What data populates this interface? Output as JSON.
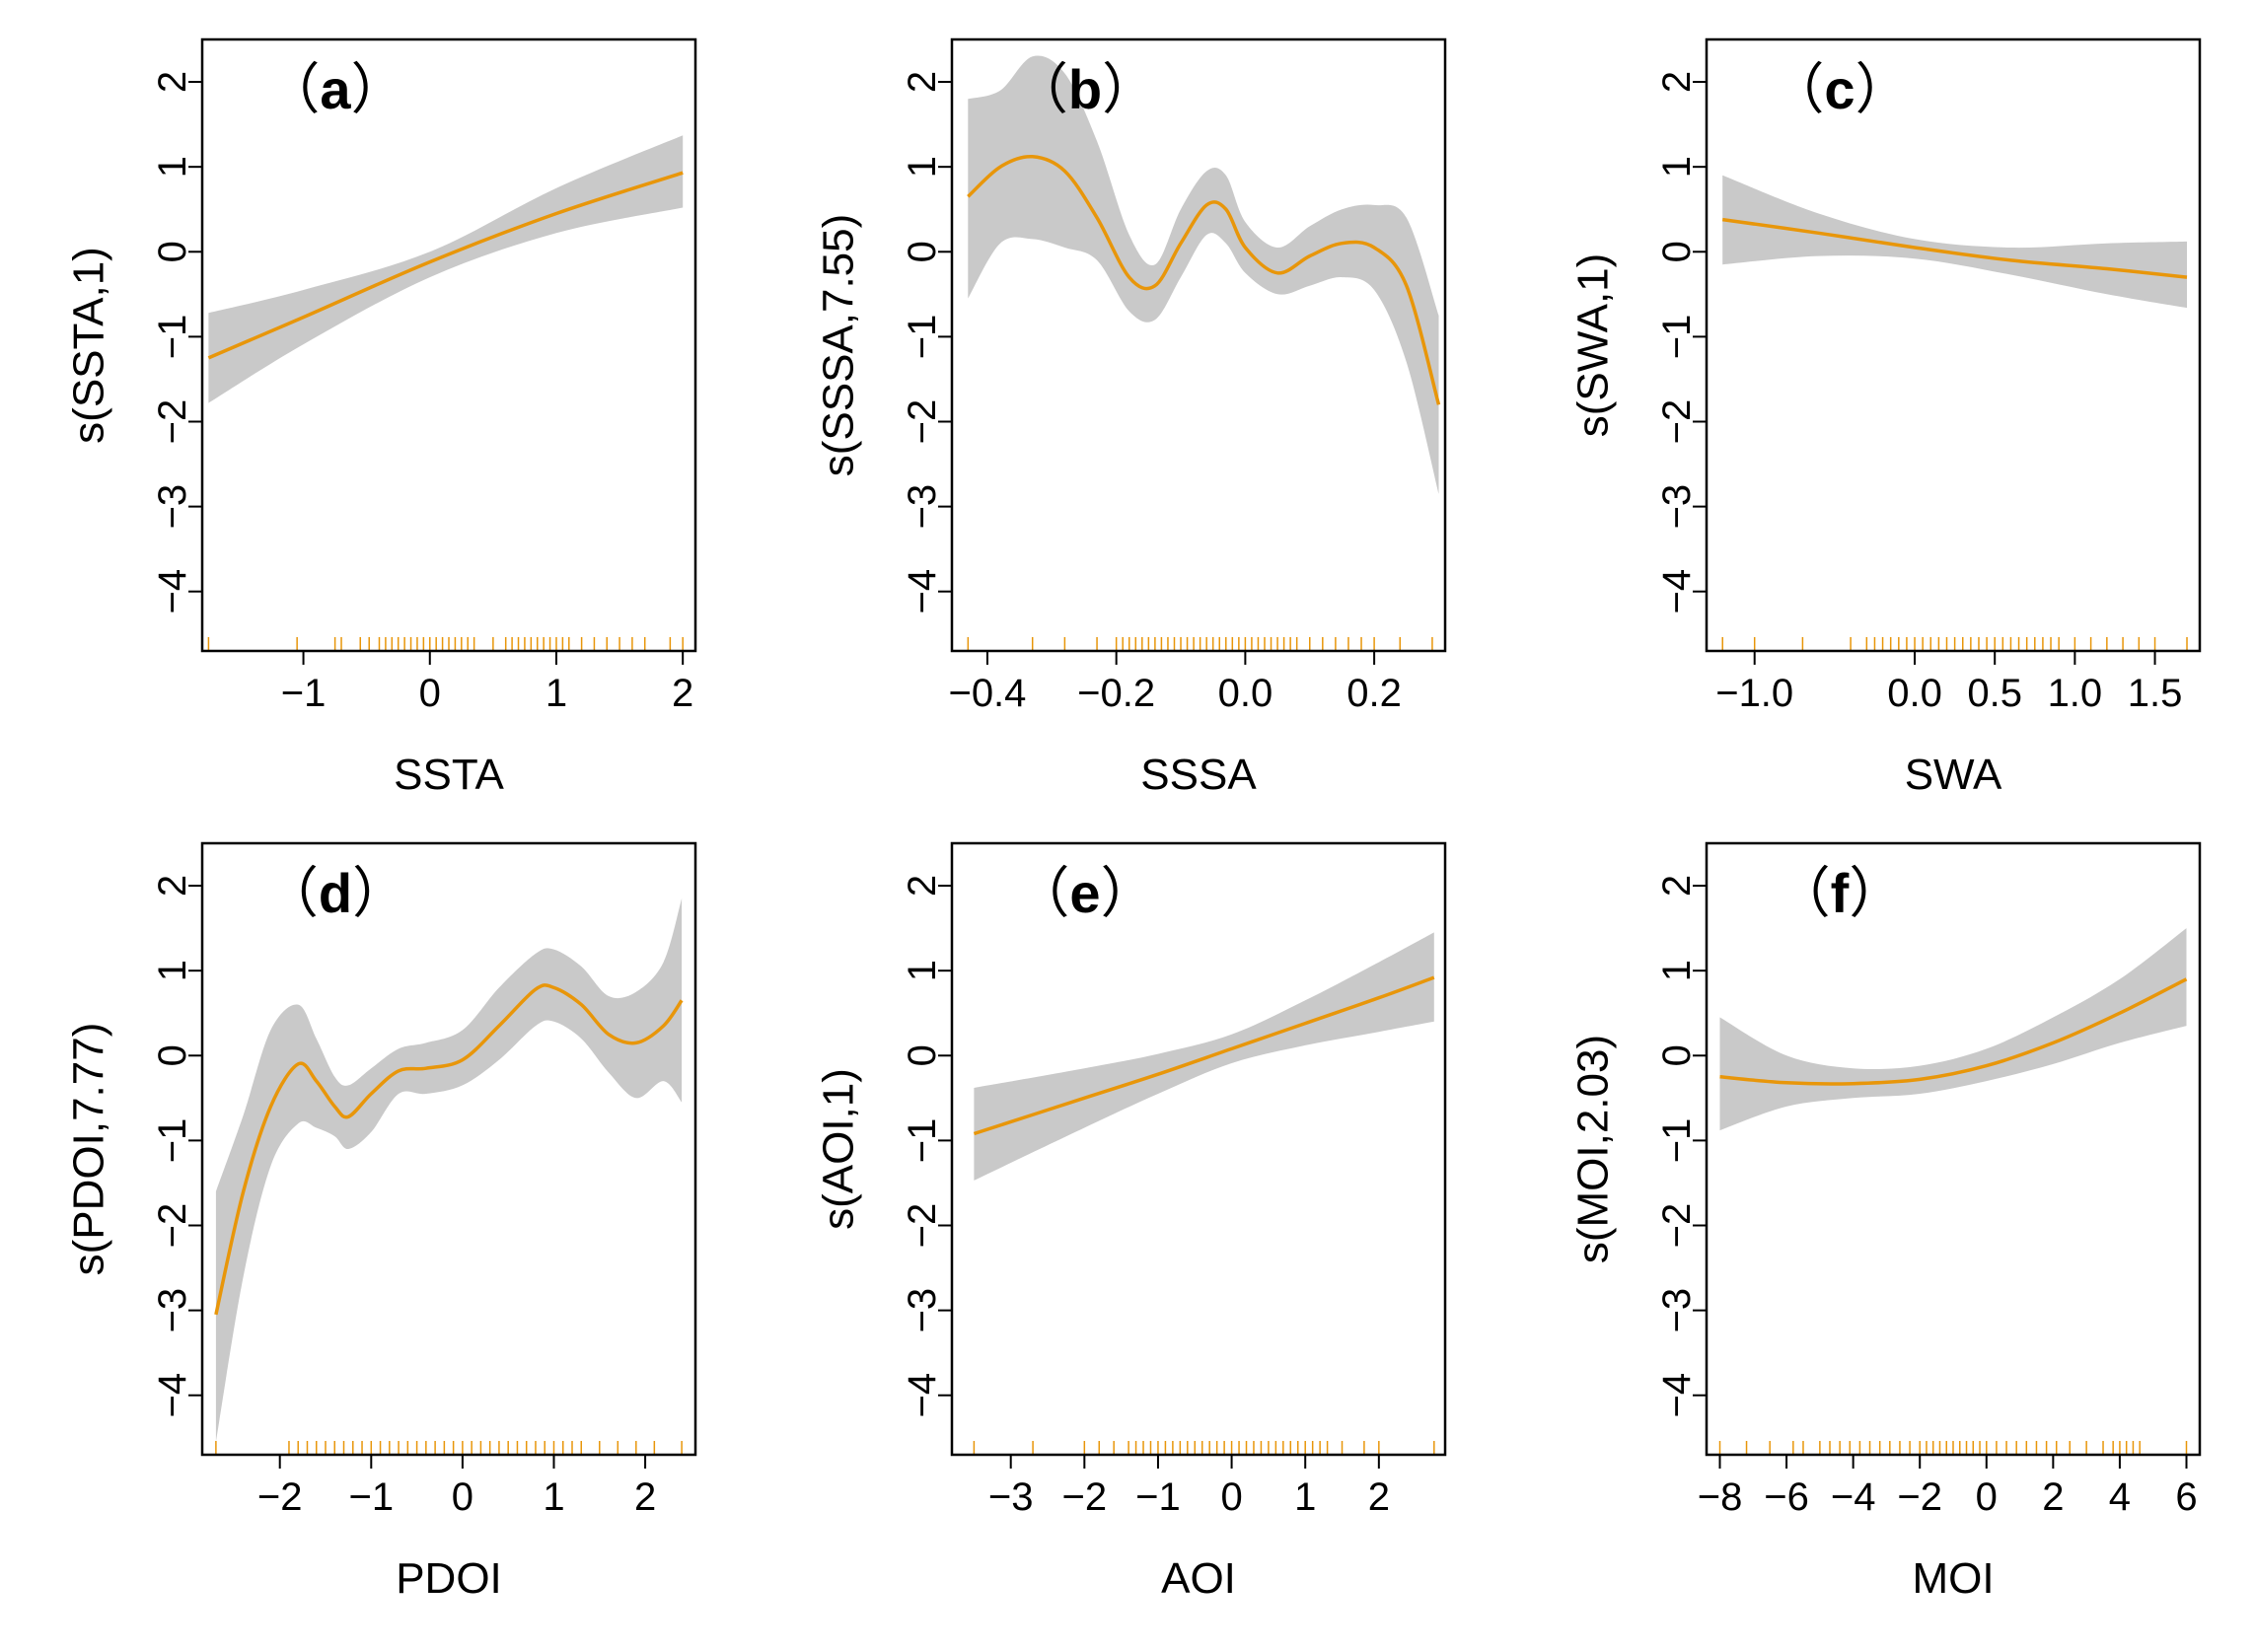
{
  "colors": {
    "line": "#E8960A",
    "band": "#C9C9C9",
    "rug": "#E8960A",
    "axis": "#000000"
  },
  "chart_data": [
    {
      "type": "line",
      "panel": "a",
      "tag": "a",
      "xlabel": "SSTA",
      "ylabel": "s(SSTA,1)",
      "xlim": [
        -1.8,
        2.1
      ],
      "ylim": [
        -4.7,
        2.5
      ],
      "xticks": [
        -1,
        0,
        1,
        2
      ],
      "xtick_labels": [
        "−1",
        "0",
        "1",
        "2"
      ],
      "yticks": [
        -4,
        -3,
        -2,
        -1,
        0,
        1,
        2
      ],
      "ytick_labels": [
        "−4",
        "−3",
        "−2",
        "−1",
        "0",
        "1",
        "2"
      ],
      "x": [
        -1.75,
        -1.0,
        0.0,
        1.0,
        2.0
      ],
      "y": [
        -1.25,
        -0.77,
        -0.12,
        0.45,
        0.93
      ],
      "upper": [
        -0.72,
        -0.45,
        0.0,
        0.75,
        1.37
      ],
      "lower": [
        -1.78,
        -1.09,
        -0.3,
        0.22,
        0.52
      ],
      "rug": [
        -1.75,
        -1.05,
        -0.75,
        -0.7,
        -0.55,
        -0.48,
        -0.4,
        -0.35,
        -0.3,
        -0.25,
        -0.2,
        -0.15,
        -0.1,
        -0.05,
        0.0,
        0.05,
        0.1,
        0.15,
        0.2,
        0.25,
        0.3,
        0.35,
        0.5,
        0.6,
        0.65,
        0.7,
        0.75,
        0.8,
        0.85,
        0.9,
        0.95,
        1.0,
        1.05,
        1.1,
        1.2,
        1.3,
        1.4,
        1.5,
        1.6,
        1.7,
        1.9,
        2.0
      ]
    },
    {
      "type": "line",
      "panel": "b",
      "tag": "b",
      "xlabel": "SSSA",
      "ylabel": "s(SSSA,7.55)",
      "xlim": [
        -0.455,
        0.31
      ],
      "ylim": [
        -4.7,
        2.5
      ],
      "xticks": [
        -0.4,
        -0.2,
        0.0,
        0.2
      ],
      "xtick_labels": [
        "−0.4",
        "−0.2",
        "0.0",
        "0.2"
      ],
      "yticks": [
        -4,
        -3,
        -2,
        -1,
        0,
        1,
        2
      ],
      "ytick_labels": [
        "−4",
        "−3",
        "−2",
        "−1",
        "0",
        "1",
        "2"
      ],
      "x": [
        -0.43,
        -0.38,
        -0.33,
        -0.28,
        -0.23,
        -0.18,
        -0.14,
        -0.1,
        -0.06,
        -0.03,
        0.0,
        0.05,
        0.1,
        0.15,
        0.2,
        0.25,
        0.3
      ],
      "y": [
        0.65,
        1.0,
        1.12,
        0.95,
        0.4,
        -0.3,
        -0.4,
        0.1,
        0.55,
        0.5,
        0.05,
        -0.25,
        -0.05,
        0.1,
        0.05,
        -0.4,
        -1.8
      ],
      "upper": [
        1.8,
        1.9,
        2.3,
        2.1,
        1.3,
        0.2,
        -0.15,
        0.5,
        0.95,
        0.9,
        0.35,
        0.05,
        0.3,
        0.5,
        0.55,
        0.4,
        -0.75
      ],
      "lower": [
        -0.55,
        0.1,
        0.15,
        0.05,
        -0.1,
        -0.7,
        -0.8,
        -0.3,
        0.2,
        0.1,
        -0.25,
        -0.5,
        -0.4,
        -0.3,
        -0.45,
        -1.3,
        -2.85
      ],
      "rug": [
        -0.43,
        -0.33,
        -0.28,
        -0.23,
        -0.2,
        -0.19,
        -0.18,
        -0.17,
        -0.16,
        -0.15,
        -0.14,
        -0.13,
        -0.12,
        -0.11,
        -0.1,
        -0.09,
        -0.08,
        -0.07,
        -0.06,
        -0.05,
        -0.04,
        -0.03,
        -0.02,
        -0.01,
        0.0,
        0.01,
        0.02,
        0.03,
        0.04,
        0.05,
        0.06,
        0.07,
        0.08,
        0.1,
        0.12,
        0.14,
        0.16,
        0.18,
        0.2,
        0.24,
        0.29
      ]
    },
    {
      "type": "line",
      "panel": "c",
      "tag": "c",
      "xlabel": "SWA",
      "ylabel": "s(SWA,1)",
      "xlim": [
        -1.3,
        1.78
      ],
      "ylim": [
        -4.7,
        2.5
      ],
      "xticks": [
        -1.0,
        0.0,
        0.5,
        1.0,
        1.5
      ],
      "xtick_labels": [
        "−1.0",
        "0.0",
        "0.5",
        "1.0",
        "1.5"
      ],
      "yticks": [
        -4,
        -3,
        -2,
        -1,
        0,
        1,
        2
      ],
      "ytick_labels": [
        "−4",
        "−3",
        "−2",
        "−1",
        "0",
        "1",
        "2"
      ],
      "x": [
        -1.2,
        -0.6,
        0.0,
        0.6,
        1.2,
        1.7
      ],
      "y": [
        0.38,
        0.22,
        0.05,
        -0.1,
        -0.2,
        -0.3
      ],
      "upper": [
        0.9,
        0.45,
        0.15,
        0.05,
        0.1,
        0.12
      ],
      "lower": [
        -0.15,
        -0.05,
        -0.08,
        -0.27,
        -0.5,
        -0.66
      ],
      "rug": [
        -1.2,
        -1.0,
        -0.7,
        -0.4,
        -0.3,
        -0.25,
        -0.2,
        -0.15,
        -0.1,
        -0.05,
        0.0,
        0.05,
        0.1,
        0.15,
        0.2,
        0.25,
        0.3,
        0.35,
        0.4,
        0.45,
        0.5,
        0.55,
        0.6,
        0.65,
        0.7,
        0.75,
        0.8,
        0.85,
        0.9,
        1.0,
        1.1,
        1.2,
        1.3,
        1.4,
        1.5,
        1.7
      ]
    },
    {
      "type": "line",
      "panel": "d",
      "tag": "d",
      "xlabel": "PDOI",
      "ylabel": "s(PDOI,7.77)",
      "xlim": [
        -2.85,
        2.55
      ],
      "ylim": [
        -4.7,
        2.5
      ],
      "xticks": [
        -2,
        -1,
        0,
        1,
        2
      ],
      "xtick_labels": [
        "−2",
        "−1",
        "0",
        "1",
        "2"
      ],
      "yticks": [
        -4,
        -3,
        -2,
        -1,
        0,
        1,
        2
      ],
      "ytick_labels": [
        "−4",
        "−3",
        "−2",
        "−1",
        "0",
        "1",
        "2"
      ],
      "x": [
        -2.7,
        -2.4,
        -2.1,
        -1.8,
        -1.6,
        -1.4,
        -1.25,
        -1.0,
        -0.7,
        -0.4,
        0.0,
        0.4,
        0.8,
        1.0,
        1.3,
        1.6,
        1.9,
        2.2,
        2.4
      ],
      "y": [
        -3.05,
        -1.6,
        -0.6,
        -0.1,
        -0.3,
        -0.6,
        -0.72,
        -0.45,
        -0.18,
        -0.15,
        -0.05,
        0.35,
        0.78,
        0.8,
        0.6,
        0.25,
        0.15,
        0.35,
        0.65
      ],
      "upper": [
        -1.6,
        -0.7,
        0.3,
        0.6,
        0.2,
        -0.25,
        -0.35,
        -0.15,
        0.08,
        0.15,
        0.3,
        0.8,
        1.2,
        1.25,
        1.05,
        0.7,
        0.75,
        1.1,
        1.85
      ],
      "lower": [
        -4.55,
        -2.6,
        -1.3,
        -0.8,
        -0.85,
        -0.95,
        -1.1,
        -0.9,
        -0.45,
        -0.45,
        -0.35,
        -0.05,
        0.35,
        0.4,
        0.2,
        -0.2,
        -0.5,
        -0.3,
        -0.55
      ],
      "rug": [
        -2.7,
        -1.9,
        -1.8,
        -1.7,
        -1.6,
        -1.5,
        -1.4,
        -1.3,
        -1.2,
        -1.1,
        -1.0,
        -0.9,
        -0.8,
        -0.7,
        -0.6,
        -0.5,
        -0.4,
        -0.3,
        -0.2,
        -0.1,
        0.0,
        0.1,
        0.2,
        0.3,
        0.4,
        0.5,
        0.6,
        0.7,
        0.8,
        0.9,
        1.0,
        1.1,
        1.2,
        1.3,
        1.5,
        1.7,
        1.9,
        2.1,
        2.4
      ]
    },
    {
      "type": "line",
      "panel": "e",
      "tag": "e",
      "xlabel": "AOI",
      "ylabel": "s(AOI,1)",
      "xlim": [
        -3.8,
        2.9
      ],
      "ylim": [
        -4.7,
        2.5
      ],
      "xticks": [
        -3,
        -2,
        -1,
        0,
        1,
        2
      ],
      "xtick_labels": [
        "−3",
        "−2",
        "−1",
        "0",
        "1",
        "2"
      ],
      "yticks": [
        -4,
        -3,
        -2,
        -1,
        0,
        1,
        2
      ],
      "ytick_labels": [
        "−4",
        "−3",
        "−2",
        "−1",
        "0",
        "1",
        "2"
      ],
      "x": [
        -3.5,
        -2.0,
        -1.0,
        0.0,
        1.0,
        2.0,
        2.75
      ],
      "y": [
        -0.92,
        -0.5,
        -0.22,
        0.08,
        0.38,
        0.68,
        0.92
      ],
      "upper": [
        -0.38,
        -0.15,
        0.02,
        0.25,
        0.65,
        1.1,
        1.45
      ],
      "lower": [
        -1.47,
        -0.85,
        -0.45,
        -0.09,
        0.12,
        0.28,
        0.4
      ],
      "rug": [
        -3.5,
        -2.7,
        -2.0,
        -1.8,
        -1.6,
        -1.4,
        -1.3,
        -1.2,
        -1.1,
        -1.0,
        -0.9,
        -0.8,
        -0.7,
        -0.6,
        -0.5,
        -0.4,
        -0.3,
        -0.2,
        -0.1,
        0.0,
        0.1,
        0.2,
        0.3,
        0.4,
        0.5,
        0.6,
        0.7,
        0.8,
        0.9,
        1.0,
        1.1,
        1.2,
        1.3,
        1.5,
        1.8,
        2.0,
        2.75
      ]
    },
    {
      "type": "line",
      "panel": "f",
      "tag": "f",
      "xlabel": "MOI",
      "ylabel": "s(MOI,2.03)",
      "xlim": [
        -8.4,
        6.4
      ],
      "ylim": [
        -4.7,
        2.5
      ],
      "xticks": [
        -8,
        -6,
        -4,
        -2,
        0,
        2,
        4,
        6
      ],
      "xtick_labels": [
        "−8",
        "−6",
        "−4",
        "−2",
        "0",
        "2",
        "4",
        "6"
      ],
      "yticks": [
        -4,
        -3,
        -2,
        -1,
        0,
        1,
        2
      ],
      "ytick_labels": [
        "−4",
        "−3",
        "−2",
        "−1",
        "0",
        "1",
        "2"
      ],
      "x": [
        -8.0,
        -6.0,
        -4.0,
        -2.0,
        0.0,
        2.0,
        4.0,
        6.0
      ],
      "y": [
        -0.25,
        -0.32,
        -0.33,
        -0.28,
        -0.12,
        0.15,
        0.5,
        0.9
      ],
      "upper": [
        0.45,
        0.0,
        -0.15,
        -0.12,
        0.08,
        0.45,
        0.9,
        1.5
      ],
      "lower": [
        -0.88,
        -0.6,
        -0.5,
        -0.45,
        -0.3,
        -0.1,
        0.15,
        0.35
      ],
      "rug": [
        -8.0,
        -7.2,
        -6.5,
        -5.8,
        -5.5,
        -5.0,
        -4.7,
        -4.4,
        -4.1,
        -3.8,
        -3.5,
        -3.2,
        -2.9,
        -2.6,
        -2.3,
        -2.0,
        -1.8,
        -1.6,
        -1.4,
        -1.2,
        -1.0,
        -0.8,
        -0.6,
        -0.4,
        -0.2,
        0.0,
        0.3,
        0.6,
        0.9,
        1.2,
        1.5,
        1.8,
        2.1,
        2.5,
        3.0,
        3.5,
        3.8,
        4.0,
        4.2,
        4.4,
        4.6,
        6.0
      ]
    }
  ]
}
